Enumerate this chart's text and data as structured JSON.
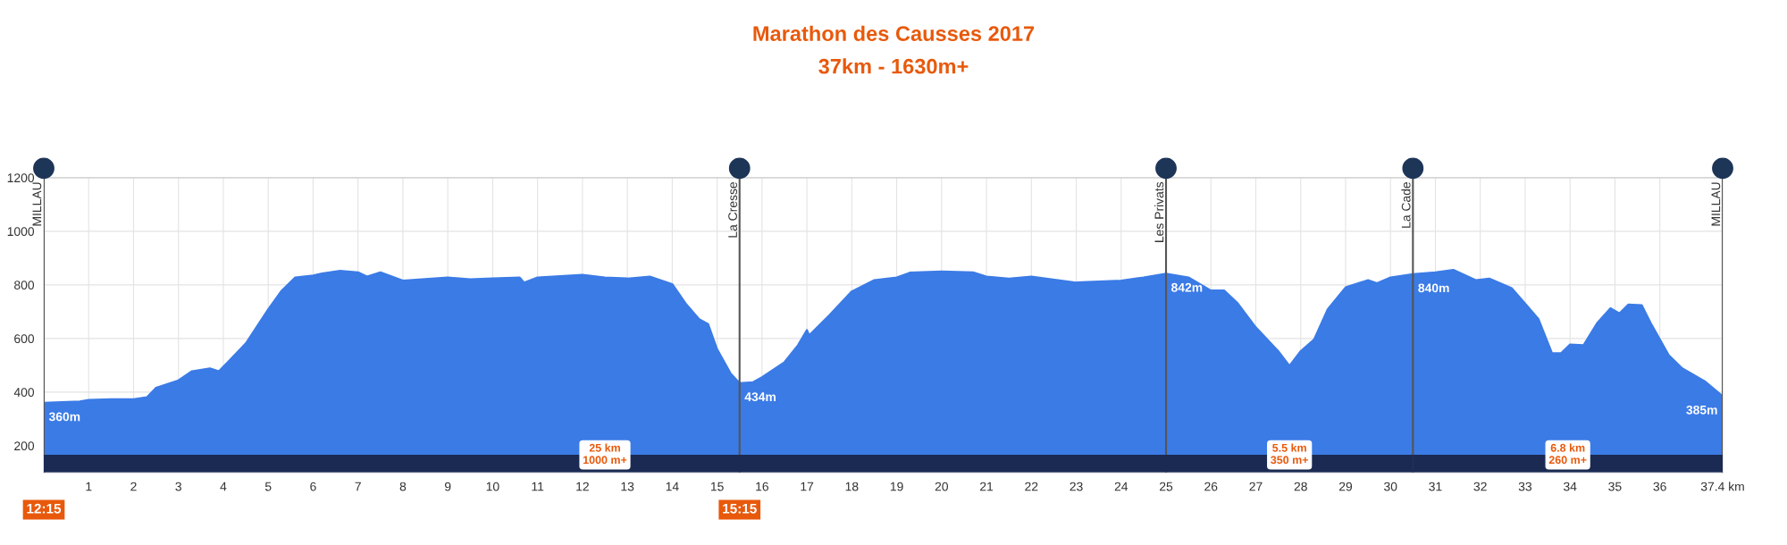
{
  "chart_data": {
    "type": "area",
    "title": "Marathon des Causses 2017",
    "subtitle": "37km - 1630m+",
    "series": [
      {
        "color": "#3b7be6",
        "x": [
          0,
          0.8,
          1.0,
          1.5,
          2.0,
          2.3,
          2.5,
          3.0,
          3.3,
          3.7,
          3.9,
          4.1,
          4.5,
          5.0,
          5.3,
          5.6,
          6.0,
          6.2,
          6.6,
          7.0,
          7.2,
          7.5,
          8.0,
          9.0,
          9.5,
          10.0,
          10.6,
          10.7,
          11.0,
          12.0,
          12.5,
          13.0,
          13.5,
          14.0,
          14.3,
          14.6,
          14.8,
          15.0,
          15.3,
          15.5,
          15.8,
          16.0,
          16.5,
          16.8,
          17.0,
          17.05,
          17.5,
          18.0,
          18.5,
          19.0,
          19.3,
          20.0,
          20.7,
          21.0,
          21.5,
          22.0,
          23.0,
          24.0,
          24.5,
          25.0,
          25.5,
          26.0,
          26.3,
          26.6,
          27.0,
          27.5,
          27.75,
          28.0,
          28.3,
          28.6,
          29.0,
          29.5,
          29.7,
          30.0,
          30.5,
          31.0,
          31.4,
          31.9,
          32.2,
          32.7,
          33.0,
          33.3,
          33.6,
          33.8,
          34.0,
          34.3,
          34.6,
          34.9,
          35.1,
          35.3,
          35.6,
          35.8,
          36.2,
          36.5,
          37.0,
          37.4
        ],
        "values": [
          360,
          365,
          371,
          374,
          374,
          381,
          416,
          444,
          478,
          489,
          478,
          512,
          582,
          709,
          779,
          828,
          835,
          843,
          853,
          847,
          831,
          847,
          816,
          828,
          821,
          824,
          828,
          809,
          828,
          838,
          828,
          824,
          831,
          803,
          731,
          672,
          654,
          560,
          470,
          434,
          437,
          456,
          512,
          575,
          632,
          612,
          687,
          776,
          818,
          828,
          846,
          850,
          847,
          831,
          824,
          831,
          809,
          816,
          828,
          842,
          828,
          779,
          779,
          731,
          642,
          553,
          498,
          553,
          597,
          709,
          791,
          818,
          806,
          828,
          840,
          847,
          856,
          818,
          824,
          788,
          731,
          672,
          545,
          545,
          578,
          575,
          657,
          713,
          694,
          727,
          724,
          657,
          538,
          489,
          441,
          385
        ]
      }
    ],
    "xlim": [
      0,
      37.4
    ],
    "ylim": [
      100,
      1200
    ],
    "xticks": [
      1,
      2,
      3,
      4,
      5,
      6,
      7,
      8,
      9,
      10,
      11,
      12,
      13,
      14,
      15,
      16,
      17,
      18,
      19,
      20,
      21,
      22,
      23,
      24,
      25,
      26,
      27,
      28,
      29,
      30,
      31,
      32,
      33,
      34,
      35,
      36,
      {
        "value": 37.4,
        "label": "37.4 km"
      }
    ],
    "yticks": [
      200,
      400,
      600,
      800,
      1000,
      1200
    ],
    "grid": true,
    "ref_lines": [
      {
        "axis": "x",
        "value": 0,
        "label": "MILLAU",
        "color": "#555555"
      },
      {
        "axis": "x",
        "value": 15.5,
        "label": "La Cresse",
        "color": "#555555"
      },
      {
        "axis": "x",
        "value": 25,
        "label": "Les Privats",
        "color": "#555555"
      },
      {
        "axis": "x",
        "value": 30.5,
        "label": "La Cade",
        "color": "#555555"
      },
      {
        "axis": "x",
        "value": 37.4,
        "label": "MILLAU",
        "color": "#555555"
      }
    ],
    "bands": [
      {
        "axis": "x",
        "from": 0,
        "to": 25,
        "label": "25 km\n1000 m+",
        "color": "#1b2a52"
      },
      {
        "axis": "x",
        "from": 25,
        "to": 30.5,
        "label": "5.5 km\n350 m+",
        "color": "#1b2a52"
      },
      {
        "axis": "x",
        "from": 30.5,
        "to": 37.4,
        "label": "6.8 km\n260 m+",
        "color": "#1b2a52"
      }
    ],
    "annotations": [
      {
        "text": "360m",
        "x": 0,
        "y": 360
      },
      {
        "text": "434m",
        "x": 15.5,
        "y": 434
      },
      {
        "text": "842m",
        "x": 25,
        "y": 842
      },
      {
        "text": "840m",
        "x": 30.5,
        "y": 840
      },
      {
        "text": "385m",
        "x": 37.4,
        "y": 385
      },
      {
        "text": "12:15",
        "x": 0,
        "y": 100
      },
      {
        "text": "15:15",
        "x": 15.5,
        "y": 100
      }
    ]
  }
}
